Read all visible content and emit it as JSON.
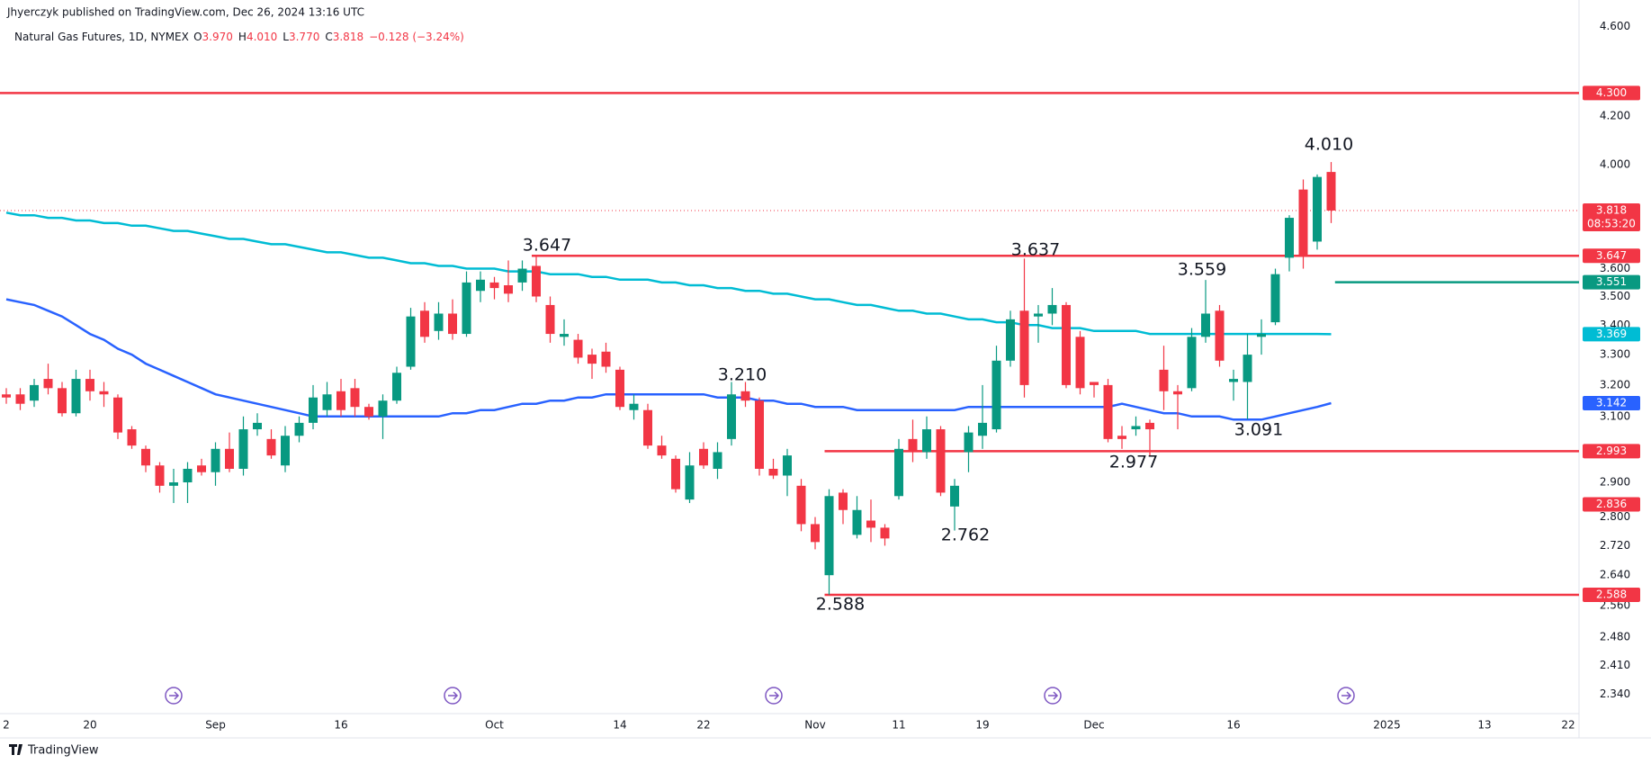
{
  "header": {
    "publisher": "Jhyerczyk published on TradingView.com, Dec 26, 2024 13:16 UTC",
    "instrument": "Natural Gas Futures, 1D, NYMEX",
    "ohlc": [
      {
        "key": "O",
        "value": "3.970"
      },
      {
        "key": "H",
        "value": "4.010"
      },
      {
        "key": "L",
        "value": "3.770"
      },
      {
        "key": "C",
        "value": "3.818"
      }
    ],
    "change": "−0.128 (−3.24%)"
  },
  "footer": {
    "brand": "TradingView"
  },
  "chart_data": {
    "type": "candlestick",
    "log_scale": true,
    "up_color": "#089981",
    "down_color": "#f23645",
    "categories": [
      "2",
      null,
      null,
      null,
      null,
      null,
      "20",
      null,
      null,
      null,
      null,
      null,
      null,
      null,
      null,
      "Sep",
      null,
      null,
      null,
      null,
      null,
      null,
      null,
      null,
      "16",
      null,
      null,
      null,
      null,
      null,
      null,
      null,
      null,
      null,
      null,
      "Oct",
      null,
      null,
      null,
      null,
      null,
      null,
      null,
      null,
      "14",
      null,
      null,
      null,
      null,
      null,
      "22",
      null,
      null,
      null,
      null,
      null,
      null,
      null,
      "Nov",
      null,
      null,
      null,
      null,
      null,
      "11",
      null,
      null,
      null,
      null,
      null,
      "19",
      null,
      null,
      null,
      null,
      null,
      null,
      null,
      "Dec",
      null,
      null,
      null,
      null,
      null,
      null,
      null,
      null,
      null,
      "16",
      null,
      null,
      null,
      null,
      null,
      null,
      null,
      null,
      null,
      null,
      "2025",
      null,
      null,
      null,
      null,
      null,
      null,
      "13",
      null,
      null,
      null,
      null,
      null,
      "22",
      null
    ],
    "open": [
      3.17,
      3.17,
      3.15,
      3.22,
      3.19,
      3.11,
      3.22,
      3.18,
      3.16,
      3.06,
      3.0,
      2.95,
      2.89,
      2.9,
      2.95,
      2.93,
      3.0,
      2.94,
      3.06,
      3.03,
      2.95,
      3.04,
      3.08,
      3.12,
      3.18,
      3.19,
      3.13,
      3.1,
      3.15,
      3.26,
      3.45,
      3.38,
      3.44,
      3.37,
      3.52,
      3.55,
      3.54,
      3.55,
      3.61,
      3.47,
      3.36,
      3.35,
      3.3,
      3.31,
      3.25,
      3.12,
      3.12,
      3.01,
      2.97,
      2.85,
      3.0,
      2.94,
      3.03,
      3.18,
      3.15,
      2.94,
      2.92,
      2.89,
      2.78,
      2.64,
      2.87,
      2.75,
      2.79,
      2.77,
      2.86,
      3.03,
      2.99,
      3.06,
      2.83,
      2.99,
      3.04,
      3.06,
      3.28,
      3.45,
      3.43,
      3.44,
      3.47,
      3.36,
      3.21,
      3.2,
      3.04,
      3.06,
      3.08,
      3.25,
      3.18,
      3.19,
      3.36,
      3.45,
      3.21,
      3.21,
      3.36,
      3.41,
      3.64,
      3.9,
      3.7,
      3.97,
      null,
      null,
      null,
      null,
      null,
      null,
      null,
      null,
      null,
      null,
      null,
      null,
      null,
      null,
      null,
      null,
      null,
      null
    ],
    "high": [
      3.19,
      3.19,
      3.22,
      3.27,
      3.21,
      3.25,
      3.25,
      3.21,
      3.17,
      3.07,
      3.01,
      2.96,
      2.94,
      2.96,
      2.97,
      3.02,
      3.05,
      3.1,
      3.11,
      3.06,
      3.07,
      3.1,
      3.2,
      3.21,
      3.22,
      3.22,
      3.14,
      3.17,
      3.26,
      3.46,
      3.48,
      3.48,
      3.49,
      3.59,
      3.59,
      3.57,
      3.63,
      3.63,
      3.647,
      3.5,
      3.42,
      3.37,
      3.32,
      3.34,
      3.26,
      3.17,
      3.14,
      3.04,
      2.98,
      2.99,
      3.02,
      3.02,
      3.21,
      3.21,
      3.16,
      2.97,
      3.0,
      2.91,
      2.8,
      2.88,
      2.88,
      2.86,
      2.85,
      2.78,
      3.03,
      3.09,
      3.1,
      3.07,
      2.91,
      3.07,
      3.2,
      3.33,
      3.45,
      3.637,
      3.47,
      3.53,
      3.48,
      3.38,
      3.21,
      3.22,
      3.07,
      3.1,
      3.09,
      3.33,
      3.2,
      3.39,
      3.559,
      3.47,
      3.25,
      3.37,
      3.42,
      3.6,
      3.8,
      3.94,
      3.96,
      4.01,
      null,
      null,
      null,
      null,
      null,
      null,
      null,
      null,
      null,
      null,
      null,
      null,
      null,
      null,
      null,
      null,
      null,
      null
    ],
    "low": [
      3.14,
      3.12,
      3.13,
      3.17,
      3.1,
      3.1,
      3.15,
      3.13,
      3.03,
      3.0,
      2.93,
      2.87,
      2.84,
      2.84,
      2.92,
      2.89,
      2.93,
      2.92,
      3.04,
      2.97,
      2.93,
      3.02,
      3.06,
      3.1,
      3.1,
      3.1,
      3.09,
      3.03,
      3.14,
      3.25,
      3.34,
      3.35,
      3.35,
      3.36,
      3.48,
      3.49,
      3.48,
      3.52,
      3.48,
      3.34,
      3.33,
      3.27,
      3.22,
      3.24,
      3.12,
      3.09,
      3.0,
      2.97,
      2.87,
      2.84,
      2.94,
      2.91,
      3.01,
      3.13,
      2.92,
      2.91,
      2.86,
      2.76,
      2.71,
      2.588,
      2.78,
      2.74,
      2.73,
      2.72,
      2.85,
      2.96,
      2.97,
      2.86,
      2.762,
      2.93,
      3.0,
      3.05,
      3.26,
      3.16,
      3.34,
      3.4,
      3.19,
      3.17,
      3.16,
      3.02,
      3.0,
      3.04,
      2.977,
      3.12,
      3.06,
      3.18,
      3.34,
      3.26,
      3.15,
      3.091,
      3.3,
      3.4,
      3.59,
      3.6,
      3.67,
      3.77,
      null,
      null,
      null,
      null,
      null,
      null,
      null,
      null,
      null,
      null,
      null,
      null,
      null,
      null,
      null,
      null,
      null,
      null
    ],
    "close": [
      3.16,
      3.14,
      3.2,
      3.19,
      3.11,
      3.22,
      3.18,
      3.17,
      3.05,
      3.01,
      2.95,
      2.89,
      2.9,
      2.94,
      2.93,
      3.0,
      2.94,
      3.06,
      3.08,
      2.98,
      3.04,
      3.08,
      3.16,
      3.17,
      3.12,
      3.13,
      3.1,
      3.15,
      3.24,
      3.43,
      3.36,
      3.44,
      3.37,
      3.55,
      3.56,
      3.53,
      3.51,
      3.6,
      3.5,
      3.37,
      3.37,
      3.29,
      3.27,
      3.26,
      3.13,
      3.14,
      3.01,
      2.98,
      2.88,
      2.95,
      2.95,
      2.99,
      3.17,
      3.15,
      2.94,
      2.92,
      2.98,
      2.78,
      2.73,
      2.86,
      2.82,
      2.82,
      2.77,
      2.74,
      3.0,
      2.99,
      3.06,
      2.87,
      2.89,
      3.05,
      3.08,
      3.28,
      3.42,
      3.2,
      3.44,
      3.47,
      3.2,
      3.19,
      3.2,
      3.03,
      3.03,
      3.07,
      3.06,
      3.18,
      3.17,
      3.36,
      3.44,
      3.28,
      3.22,
      3.3,
      3.37,
      3.58,
      3.79,
      3.65,
      3.95,
      3.818,
      null,
      null,
      null,
      null,
      null,
      null,
      null,
      null,
      null,
      null,
      null,
      null,
      null,
      null,
      null,
      null,
      null,
      null
    ],
    "series": [
      {
        "color": "#00bcd4",
        "values": [
          3.81,
          3.8,
          3.8,
          3.79,
          3.79,
          3.78,
          3.78,
          3.77,
          3.77,
          3.76,
          3.76,
          3.75,
          3.74,
          3.74,
          3.73,
          3.72,
          3.71,
          3.71,
          3.7,
          3.69,
          3.69,
          3.68,
          3.67,
          3.66,
          3.66,
          3.65,
          3.64,
          3.64,
          3.63,
          3.62,
          3.62,
          3.61,
          3.61,
          3.6,
          3.6,
          3.6,
          3.59,
          3.59,
          3.59,
          3.58,
          3.58,
          3.58,
          3.57,
          3.57,
          3.56,
          3.56,
          3.56,
          3.55,
          3.55,
          3.54,
          3.54,
          3.53,
          3.53,
          3.52,
          3.52,
          3.51,
          3.51,
          3.5,
          3.49,
          3.49,
          3.48,
          3.47,
          3.47,
          3.46,
          3.45,
          3.45,
          3.44,
          3.44,
          3.43,
          3.42,
          3.42,
          3.41,
          3.41,
          3.4,
          3.4,
          3.39,
          3.39,
          3.39,
          3.38,
          3.38,
          3.38,
          3.38,
          3.37,
          3.37,
          3.37,
          3.37,
          3.37,
          3.37,
          3.37,
          3.37,
          3.37,
          3.37,
          3.37,
          3.37,
          3.37,
          3.369,
          null,
          null,
          null,
          null,
          null,
          null,
          null,
          null,
          null,
          null,
          null,
          null,
          null,
          null,
          null,
          null,
          null,
          null
        ]
      },
      {
        "color": "#2962ff",
        "values": [
          3.49,
          3.48,
          3.47,
          3.45,
          3.43,
          3.4,
          3.37,
          3.35,
          3.32,
          3.3,
          3.27,
          3.25,
          3.23,
          3.21,
          3.19,
          3.17,
          3.16,
          3.15,
          3.14,
          3.13,
          3.12,
          3.11,
          3.1,
          3.1,
          3.1,
          3.1,
          3.1,
          3.1,
          3.1,
          3.1,
          3.1,
          3.1,
          3.11,
          3.11,
          3.12,
          3.12,
          3.13,
          3.14,
          3.14,
          3.15,
          3.15,
          3.16,
          3.16,
          3.17,
          3.17,
          3.17,
          3.17,
          3.17,
          3.17,
          3.17,
          3.17,
          3.16,
          3.16,
          3.16,
          3.15,
          3.15,
          3.14,
          3.14,
          3.13,
          3.13,
          3.13,
          3.12,
          3.12,
          3.12,
          3.12,
          3.12,
          3.12,
          3.12,
          3.12,
          3.13,
          3.13,
          3.13,
          3.13,
          3.13,
          3.13,
          3.13,
          3.13,
          3.13,
          3.13,
          3.13,
          3.14,
          3.13,
          3.12,
          3.11,
          3.11,
          3.1,
          3.1,
          3.1,
          3.09,
          3.09,
          3.09,
          3.1,
          3.11,
          3.12,
          3.13,
          3.142,
          null,
          null,
          null,
          null,
          null,
          null,
          null,
          null,
          null,
          null,
          null,
          null,
          null,
          null,
          null,
          null,
          null,
          null
        ]
      }
    ],
    "ylim": [
      2.295,
      4.635
    ],
    "yticks": [
      {
        "value": 4.6,
        "label": "4.600"
      },
      {
        "value": 4.2,
        "label": "4.200"
      },
      {
        "value": 4.0,
        "label": "4.000"
      },
      {
        "value": 3.6,
        "label": "3.600"
      },
      {
        "value": 3.5,
        "label": "3.500"
      },
      {
        "value": 3.4,
        "label": "3.400"
      },
      {
        "value": 3.3,
        "label": "3.300"
      },
      {
        "value": 3.2,
        "label": "3.200"
      },
      {
        "value": 3.1,
        "label": "3.100"
      },
      {
        "value": 2.9,
        "label": "2.900"
      },
      {
        "value": 2.8,
        "label": "2.800"
      },
      {
        "value": 2.72,
        "label": "2.720"
      },
      {
        "value": 2.64,
        "label": "2.640"
      },
      {
        "value": 2.56,
        "label": "2.560"
      },
      {
        "value": 2.48,
        "label": "2.480"
      },
      {
        "value": 2.41,
        "label": "2.410"
      },
      {
        "value": 2.34,
        "label": "2.340"
      }
    ],
    "grid": false,
    "levels": [
      {
        "value": 4.3,
        "label": "4.300",
        "color": "#f23645",
        "line": "solid"
      },
      {
        "value": 3.818,
        "color": "#f23645",
        "line": "dotted",
        "countdown": "08:53:20"
      },
      {
        "value": 3.647,
        "color": "#f23645",
        "line": "solid"
      },
      {
        "value": 3.551,
        "color": "#089981",
        "line": "solid"
      },
      {
        "value": 3.369,
        "color": "#00bcd4"
      },
      {
        "value": 3.142,
        "color": "#2962ff"
      },
      {
        "value": 2.993,
        "color": "#f23645",
        "line": "solid"
      },
      {
        "value": 2.836,
        "color": "#f23645"
      },
      {
        "value": 2.588,
        "color": "#f23645",
        "line": "solid"
      }
    ],
    "annotations": [
      "4.010",
      "3.647",
      "3.637",
      "3.559",
      "3.210",
      "3.091",
      "2.977",
      "2.762",
      "2.588"
    ]
  }
}
